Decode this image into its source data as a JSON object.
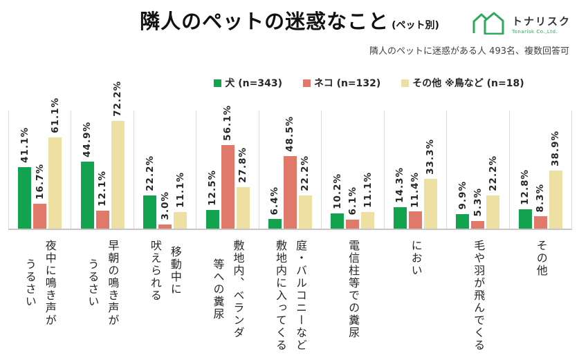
{
  "header": {
    "title": "隣人のペットの迷惑なこと",
    "title_suffix": "(ペット別)",
    "logo": {
      "name": "トナリスク",
      "subtext": "Tonarisk Co.,Ltd.",
      "icon_color": "#2fa75c"
    }
  },
  "subtitle": "隣人のペットに迷惑がある人 493名、複数回答可",
  "chart_data": {
    "type": "bar",
    "title": "隣人のペットの迷惑なこと(ペット別)",
    "xlabel": "",
    "ylabel": "",
    "unit": "%",
    "ylim": [
      0,
      80
    ],
    "grid": "vertical-category-separators",
    "legend_position": "top",
    "value_labels": "rotated-90",
    "categories": [
      "夜中に鳴き声がうるさい",
      "早朝の鳴き声がうるさい",
      "移動中に吠えられる",
      "敷地内、ベランダ等への糞尿",
      "庭・バルコニーなど敷地内に入ってくる",
      "電信柱等での糞尿",
      "におい",
      "毛や羽が飛んでくる",
      "その他"
    ],
    "category_lines": [
      [
        "夜中に鳴き声が",
        "うるさい"
      ],
      [
        "早朝の鳴き声が",
        "うるさい"
      ],
      [
        "移動中に",
        "吠えられる"
      ],
      [
        "敷地内、ベランダ",
        "等への糞尿"
      ],
      [
        "庭・バルコニーなど",
        "敷地内に入ってくる"
      ],
      [
        "電信柱等での糞尿"
      ],
      [
        "におい"
      ],
      [
        "毛や羽が飛んでくる"
      ],
      [
        "その他"
      ]
    ],
    "series": [
      {
        "name": "犬 (n=343)",
        "color": "#13a24e",
        "values": [
          41.1,
          44.9,
          22.2,
          12.5,
          6.4,
          10.2,
          14.3,
          9.9,
          12.8
        ]
      },
      {
        "name": "ネコ (n=132)",
        "color": "#e0796a",
        "values": [
          16.7,
          12.1,
          3.0,
          56.1,
          48.5,
          6.1,
          11.4,
          5.3,
          8.3
        ]
      },
      {
        "name": "その他 ※鳥など (n=18)",
        "color": "#eee0a2",
        "values": [
          61.1,
          72.2,
          11.1,
          27.8,
          22.2,
          11.1,
          33.3,
          22.2,
          38.9
        ]
      }
    ]
  }
}
